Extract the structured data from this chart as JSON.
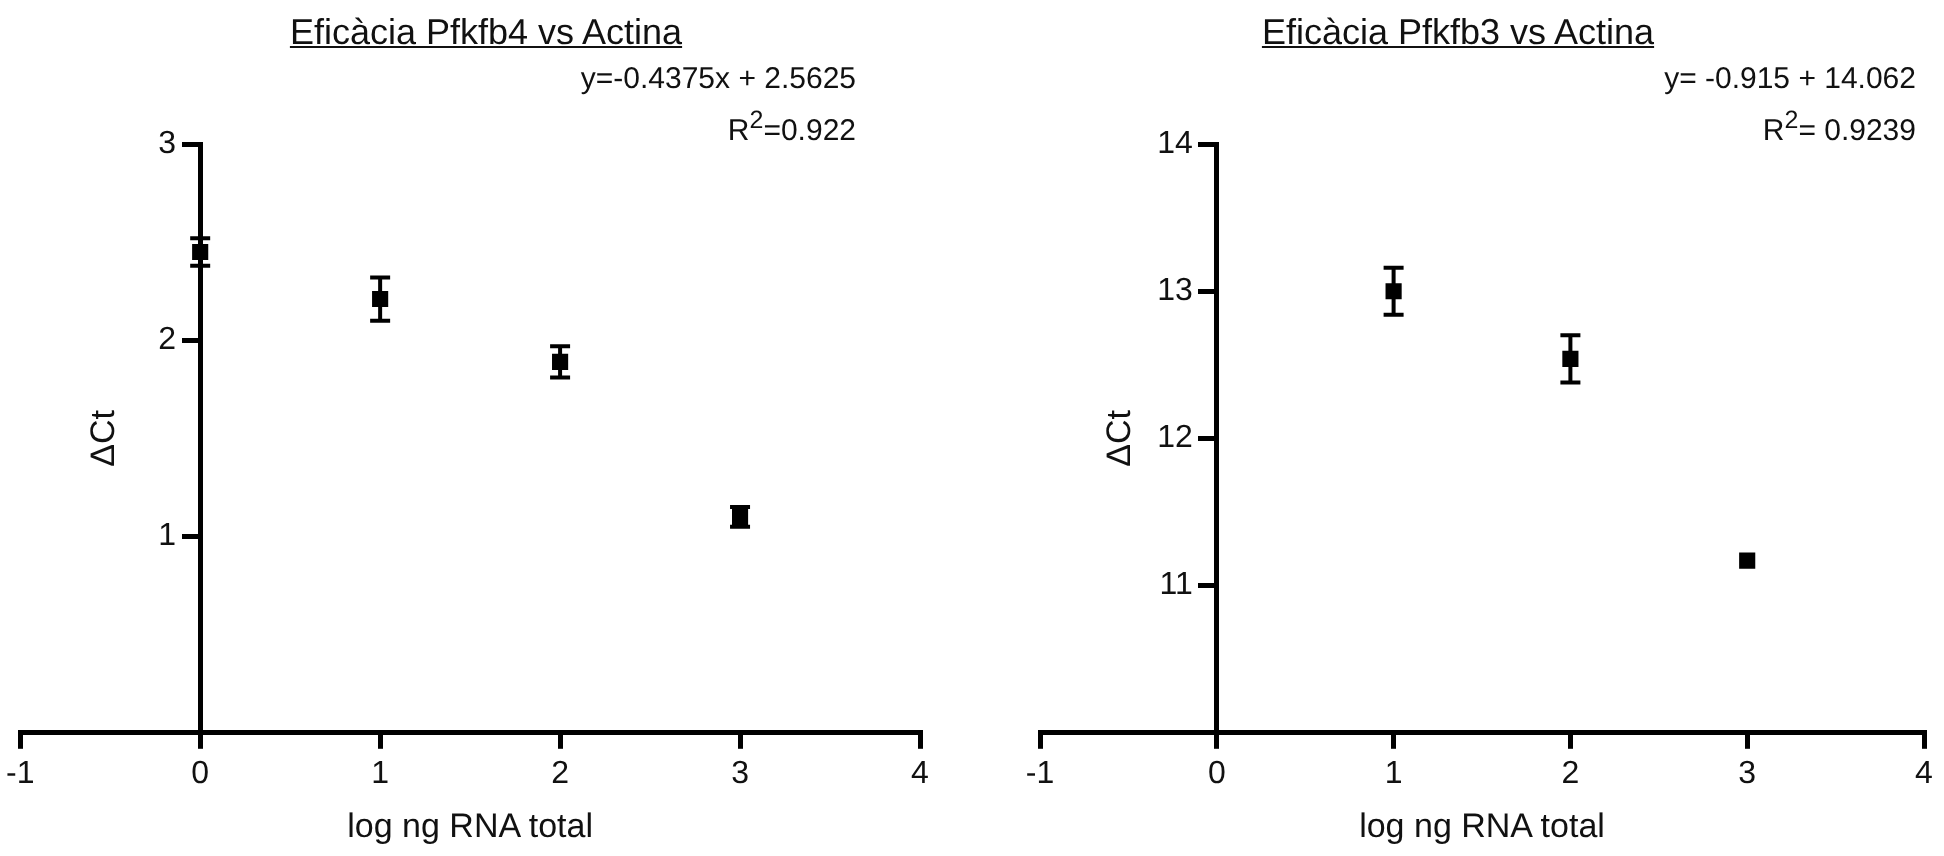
{
  "chart_data": [
    {
      "type": "scatter",
      "title": "Eficàcia Pfkfb4 vs Actina",
      "xlabel": "log ng RNA total",
      "ylabel": "ΔCt",
      "annotations": [
        "y=-0.4375x + 2.5625",
        "R$^{2}$=0.922"
      ],
      "x": [
        0,
        1,
        2,
        3
      ],
      "values": [
        2.45,
        2.21,
        1.89,
        1.1
      ],
      "errors": [
        0.07,
        0.11,
        0.08,
        0.05
      ],
      "color": "#000000",
      "marker": "square",
      "xlim": [
        -1,
        4
      ],
      "xticks": [
        -1,
        0,
        1,
        2,
        3,
        4
      ],
      "ylim": [
        0,
        3
      ],
      "yticks": [
        1,
        2,
        3
      ]
    },
    {
      "type": "scatter",
      "title": "Eficàcia Pfkfb3 vs Actina",
      "xlabel": "log ng RNA total",
      "ylabel": "ΔCt",
      "annotations": [
        "y= -0.915 + 14.062",
        "R$^{2}$= 0.9239"
      ],
      "x": [
        1,
        2,
        3
      ],
      "values": [
        13.0,
        12.54,
        11.17
      ],
      "errors": [
        0.16,
        0.16,
        null
      ],
      "color": "#000000",
      "marker": "square",
      "xlim": [
        -1,
        4
      ],
      "xticks": [
        -1,
        0,
        1,
        2,
        3,
        4
      ],
      "ylim": [
        10,
        14
      ],
      "yticks": [
        11,
        12,
        13,
        14
      ]
    }
  ]
}
